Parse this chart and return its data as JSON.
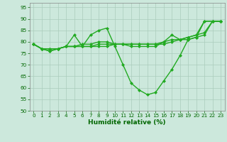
{
  "xlabel": "Humidité relative (%)",
  "background_color": "#cce8dc",
  "grid_color": "#aaccbb",
  "line_color": "#22aa22",
  "ylim": [
    50,
    97
  ],
  "xlim": [
    -0.5,
    23.5
  ],
  "yticks": [
    50,
    55,
    60,
    65,
    70,
    75,
    80,
    85,
    90,
    95
  ],
  "xticks": [
    0,
    1,
    2,
    3,
    4,
    5,
    6,
    7,
    8,
    9,
    10,
    11,
    12,
    13,
    14,
    15,
    16,
    17,
    18,
    19,
    20,
    21,
    22,
    23
  ],
  "series": [
    [
      79,
      77,
      76,
      77,
      78,
      83,
      78,
      83,
      85,
      86,
      78,
      70,
      62,
      59,
      57,
      58,
      63,
      68,
      74,
      81,
      82,
      83,
      89,
      89
    ],
    [
      79,
      77,
      76,
      77,
      78,
      78,
      78,
      78,
      78,
      78,
      79,
      79,
      79,
      79,
      79,
      79,
      80,
      81,
      81,
      82,
      83,
      84,
      89,
      89
    ],
    [
      79,
      77,
      77,
      77,
      78,
      78,
      79,
      79,
      80,
      80,
      79,
      79,
      78,
      78,
      78,
      78,
      80,
      83,
      81,
      81,
      82,
      89,
      89,
      89
    ],
    [
      79,
      77,
      77,
      77,
      78,
      78,
      78,
      78,
      79,
      79,
      79,
      79,
      79,
      79,
      79,
      79,
      79,
      80,
      81,
      82,
      83,
      89,
      89,
      89
    ]
  ],
  "marker": "D",
  "markersize": 2.0,
  "linewidth": 1.0,
  "tick_labelsize": 5.2,
  "xlabel_fontsize": 6.5
}
